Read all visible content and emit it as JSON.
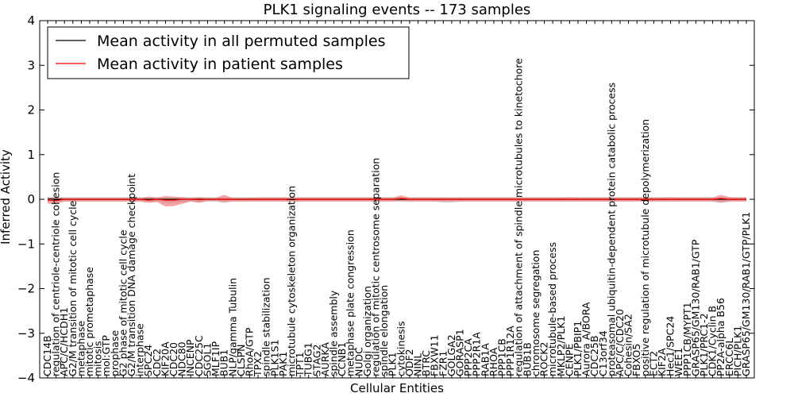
{
  "chart_data": {
    "type": "line",
    "title": "PLK1 signaling events -- 173 samples",
    "xlabel": "Cellular Entities",
    "ylabel": "Inferred Activity",
    "ylim": [
      -4,
      4
    ],
    "yticks": [
      4,
      3,
      2,
      1,
      0,
      -1,
      -2,
      -3,
      -4
    ],
    "grid": false,
    "legend_position": "top-left",
    "categories": [
      "CDC14B",
      "regulation of centriole-centriole cohesion",
      "APC/C/HCDH1",
      "G2/M transition of mitotic cell cycle",
      "metaphase",
      "mitotic prometaphase",
      "mitosis",
      "mol:GTP",
      "prophase",
      "G2 phase of mitotic cell cycle",
      "G2/M transition DNA damage checkpoint",
      "interphase",
      "SPC24",
      "CDC2",
      "KIF20A",
      "CDC20",
      "NDC80",
      "INCENP",
      "CDC25C",
      "SGOL1",
      "MLF1IP",
      "BUB1",
      "NLP/gamma Tubulin",
      "CLSPN",
      "RhoA/GTP",
      "TPX2",
      "spindle stabilization",
      "PLK1S1",
      "PAK1",
      "microtubule cytoskeleton organization",
      "TPT1",
      "TUBG1",
      "STAG2",
      "AURKA",
      "spindle assembly",
      "CCNB1",
      "metaphase plate congression",
      "NUDC",
      "Golgi organization",
      "regulation of mitotic centrosome separation",
      "spindle elongation",
      "PLK1",
      "cytokinesis",
      "ODF2",
      "NINL",
      "BTRC",
      "FBXW11",
      "FZR1",
      "GOLGA2",
      "GORASP1",
      "PPP2CA",
      "PPP2R1A",
      "RAB1A",
      "RHOA",
      "PPP1CB",
      "PPP1R12A",
      "regulation of attachment of spindle microtubules to kinetochore",
      "BUB1B",
      "chromosome segregation",
      "ROCK2",
      "microtubule-based process",
      "MKLP2/PLK1",
      "CENPE",
      "PLK1/PBIP1",
      "Aurora A/BORA",
      "CDC25B",
      "C13orf34",
      "proteasomal ubiquitin-dependent protein catabolic process",
      "APC/C/CDC20",
      "Cohesin/SA2",
      "FBXO5",
      "positive regulation of microtubule depolymerization",
      "ECT2",
      "KIF2A",
      "Hec1/SPC24",
      "WEE1",
      "PPP1CB/MYPT1",
      "GRASP65/GM130/RAB1/GTP",
      "PLK1/PRC1-2",
      "CDK1/Cyclin B",
      "PP2A-alpha B56",
      "ERCC6L",
      "PICH/PLK1",
      "GRASP65/GM130/RAB1/GTP/PLK1"
    ],
    "series": [
      {
        "name": "Mean activity in all permuted samples",
        "color": "#000000",
        "values": [
          0.01,
          0.0,
          0.0,
          0.0,
          0.0,
          0.0,
          0.0,
          0.0,
          0.0,
          0.0,
          0.0,
          0.0,
          0.0,
          0.0,
          0.0,
          0.0,
          0.0,
          0.0,
          0.0,
          0.0,
          0.0,
          0.0,
          0.0,
          0.0,
          0.0,
          0.0,
          0.0,
          0.0,
          0.0,
          0.0,
          0.0,
          0.0,
          0.0,
          0.0,
          0.0,
          0.0,
          0.0,
          0.0,
          0.0,
          0.0,
          0.0,
          0.0,
          0.0,
          0.0,
          0.0,
          0.0,
          0.0,
          0.0,
          0.0,
          0.0,
          0.0,
          0.0,
          0.0,
          0.0,
          0.0,
          0.0,
          0.0,
          0.0,
          0.0,
          0.0,
          0.0,
          0.0,
          0.0,
          0.0,
          0.0,
          0.0,
          0.0,
          0.0,
          0.0,
          0.0,
          0.0,
          0.0,
          0.0,
          0.0,
          0.0,
          0.0,
          0.0,
          0.0,
          0.0,
          0.0,
          0.0,
          0.0,
          0.0,
          0.0
        ]
      },
      {
        "name": "Mean activity in patient samples",
        "color": "#ff0000",
        "values": [
          -0.02,
          -0.03,
          0.0,
          0.0,
          0.0,
          0.0,
          0.0,
          0.0,
          0.0,
          0.0,
          0.0,
          0.0,
          -0.02,
          0.0,
          -0.02,
          -0.02,
          0.0,
          0.0,
          -0.01,
          0.0,
          0.0,
          0.0,
          0.0,
          0.0,
          0.0,
          0.0,
          0.0,
          0.0,
          0.0,
          0.0,
          0.0,
          0.0,
          0.0,
          0.0,
          0.0,
          0.0,
          0.0,
          0.0,
          0.0,
          0.0,
          0.0,
          0.0,
          0.02,
          0.0,
          0.0,
          0.0,
          0.0,
          0.0,
          0.0,
          0.0,
          0.0,
          0.0,
          0.0,
          0.0,
          0.0,
          0.0,
          0.0,
          0.0,
          0.0,
          0.0,
          0.0,
          0.0,
          0.0,
          0.0,
          0.0,
          0.0,
          0.0,
          0.0,
          0.0,
          0.0,
          0.0,
          0.0,
          0.0,
          0.0,
          0.0,
          0.0,
          0.0,
          0.0,
          0.0,
          0.0,
          0.02,
          0.0,
          0.0,
          0.0
        ]
      }
    ],
    "bands": [
      {
        "name": "permuted-band",
        "color": "#bbbbbb",
        "low": [
          -0.05,
          -0.05,
          -0.05,
          -0.05,
          -0.05,
          -0.05,
          -0.05,
          -0.05,
          -0.05,
          -0.05,
          -0.05,
          -0.05,
          -0.05,
          -0.06,
          -0.08,
          -0.08,
          -0.07,
          -0.05,
          -0.06,
          -0.05,
          -0.05,
          -0.08,
          -0.05,
          -0.05,
          -0.05,
          -0.05,
          -0.05,
          -0.05,
          -0.05,
          -0.05,
          -0.05,
          -0.05,
          -0.05,
          -0.05,
          -0.05,
          -0.05,
          -0.05,
          -0.05,
          -0.05,
          -0.05,
          -0.05,
          -0.05,
          -0.05,
          -0.05,
          -0.05,
          -0.05,
          -0.05,
          -0.07,
          -0.07,
          -0.05,
          -0.05,
          -0.05,
          -0.05,
          -0.05,
          -0.05,
          -0.05,
          -0.05,
          -0.05,
          -0.05,
          -0.05,
          -0.05,
          -0.05,
          -0.05,
          -0.05,
          -0.05,
          -0.05,
          -0.05,
          -0.05,
          -0.05,
          -0.05,
          -0.05,
          -0.05,
          -0.05,
          -0.05,
          -0.05,
          -0.05,
          -0.05,
          -0.05,
          -0.05,
          -0.05,
          -0.08,
          -0.05,
          -0.05,
          -0.05
        ],
        "high": [
          0.05,
          0.05,
          0.05,
          0.05,
          0.05,
          0.05,
          0.05,
          0.05,
          0.05,
          0.05,
          0.05,
          0.05,
          0.05,
          0.05,
          0.05,
          0.05,
          0.05,
          0.05,
          0.05,
          0.05,
          0.05,
          0.05,
          0.05,
          0.05,
          0.05,
          0.05,
          0.05,
          0.05,
          0.05,
          0.05,
          0.05,
          0.05,
          0.05,
          0.05,
          0.05,
          0.05,
          0.05,
          0.05,
          0.05,
          0.05,
          0.05,
          0.05,
          0.05,
          0.05,
          0.05,
          0.05,
          0.05,
          0.05,
          0.05,
          0.05,
          0.05,
          0.05,
          0.05,
          0.05,
          0.05,
          0.05,
          0.05,
          0.05,
          0.05,
          0.05,
          0.05,
          0.05,
          0.05,
          0.05,
          0.05,
          0.05,
          0.05,
          0.05,
          0.05,
          0.05,
          0.05,
          0.05,
          0.05,
          0.05,
          0.05,
          0.05,
          0.05,
          0.05,
          0.05,
          0.05,
          0.05,
          0.05,
          0.05,
          0.05
        ]
      },
      {
        "name": "patient-band",
        "color": "#f08080",
        "low": [
          -0.1,
          -0.1,
          -0.05,
          -0.05,
          -0.05,
          -0.05,
          -0.05,
          -0.05,
          -0.05,
          -0.05,
          -0.05,
          -0.05,
          -0.08,
          -0.06,
          -0.16,
          -0.15,
          -0.1,
          -0.05,
          -0.08,
          -0.04,
          -0.04,
          -0.06,
          -0.05,
          -0.05,
          -0.05,
          -0.05,
          -0.05,
          -0.05,
          -0.05,
          -0.05,
          -0.05,
          -0.05,
          -0.05,
          -0.05,
          -0.05,
          -0.05,
          -0.05,
          -0.05,
          -0.05,
          -0.05,
          -0.05,
          -0.05,
          -0.04,
          -0.05,
          -0.05,
          -0.05,
          -0.05,
          -0.05,
          -0.05,
          -0.05,
          -0.05,
          -0.05,
          -0.05,
          -0.05,
          -0.05,
          -0.05,
          -0.05,
          -0.05,
          -0.05,
          -0.05,
          -0.05,
          -0.05,
          -0.05,
          -0.05,
          -0.05,
          -0.05,
          -0.05,
          -0.05,
          -0.05,
          -0.05,
          -0.05,
          -0.05,
          -0.05,
          -0.05,
          -0.05,
          -0.05,
          -0.05,
          -0.05,
          -0.05,
          -0.05,
          -0.07,
          -0.05,
          -0.05,
          -0.05
        ],
        "high": [
          0.04,
          0.04,
          0.03,
          0.03,
          0.03,
          0.03,
          0.03,
          0.03,
          0.03,
          0.03,
          0.03,
          0.03,
          0.06,
          0.04,
          0.07,
          0.06,
          0.05,
          0.03,
          0.05,
          0.03,
          0.03,
          0.1,
          0.03,
          0.03,
          0.03,
          0.04,
          0.04,
          0.04,
          0.04,
          0.04,
          0.04,
          0.04,
          0.04,
          0.04,
          0.04,
          0.04,
          0.04,
          0.04,
          0.04,
          0.04,
          0.04,
          0.04,
          0.09,
          0.04,
          0.04,
          0.04,
          0.04,
          0.04,
          0.04,
          0.04,
          0.04,
          0.04,
          0.04,
          0.04,
          0.04,
          0.04,
          0.04,
          0.04,
          0.04,
          0.04,
          0.04,
          0.04,
          0.05,
          0.04,
          0.04,
          0.04,
          0.04,
          0.04,
          0.04,
          0.04,
          0.04,
          0.04,
          0.04,
          0.04,
          0.05,
          0.04,
          0.04,
          0.04,
          0.04,
          0.04,
          0.1,
          0.05,
          0.04,
          0.04
        ]
      }
    ]
  }
}
